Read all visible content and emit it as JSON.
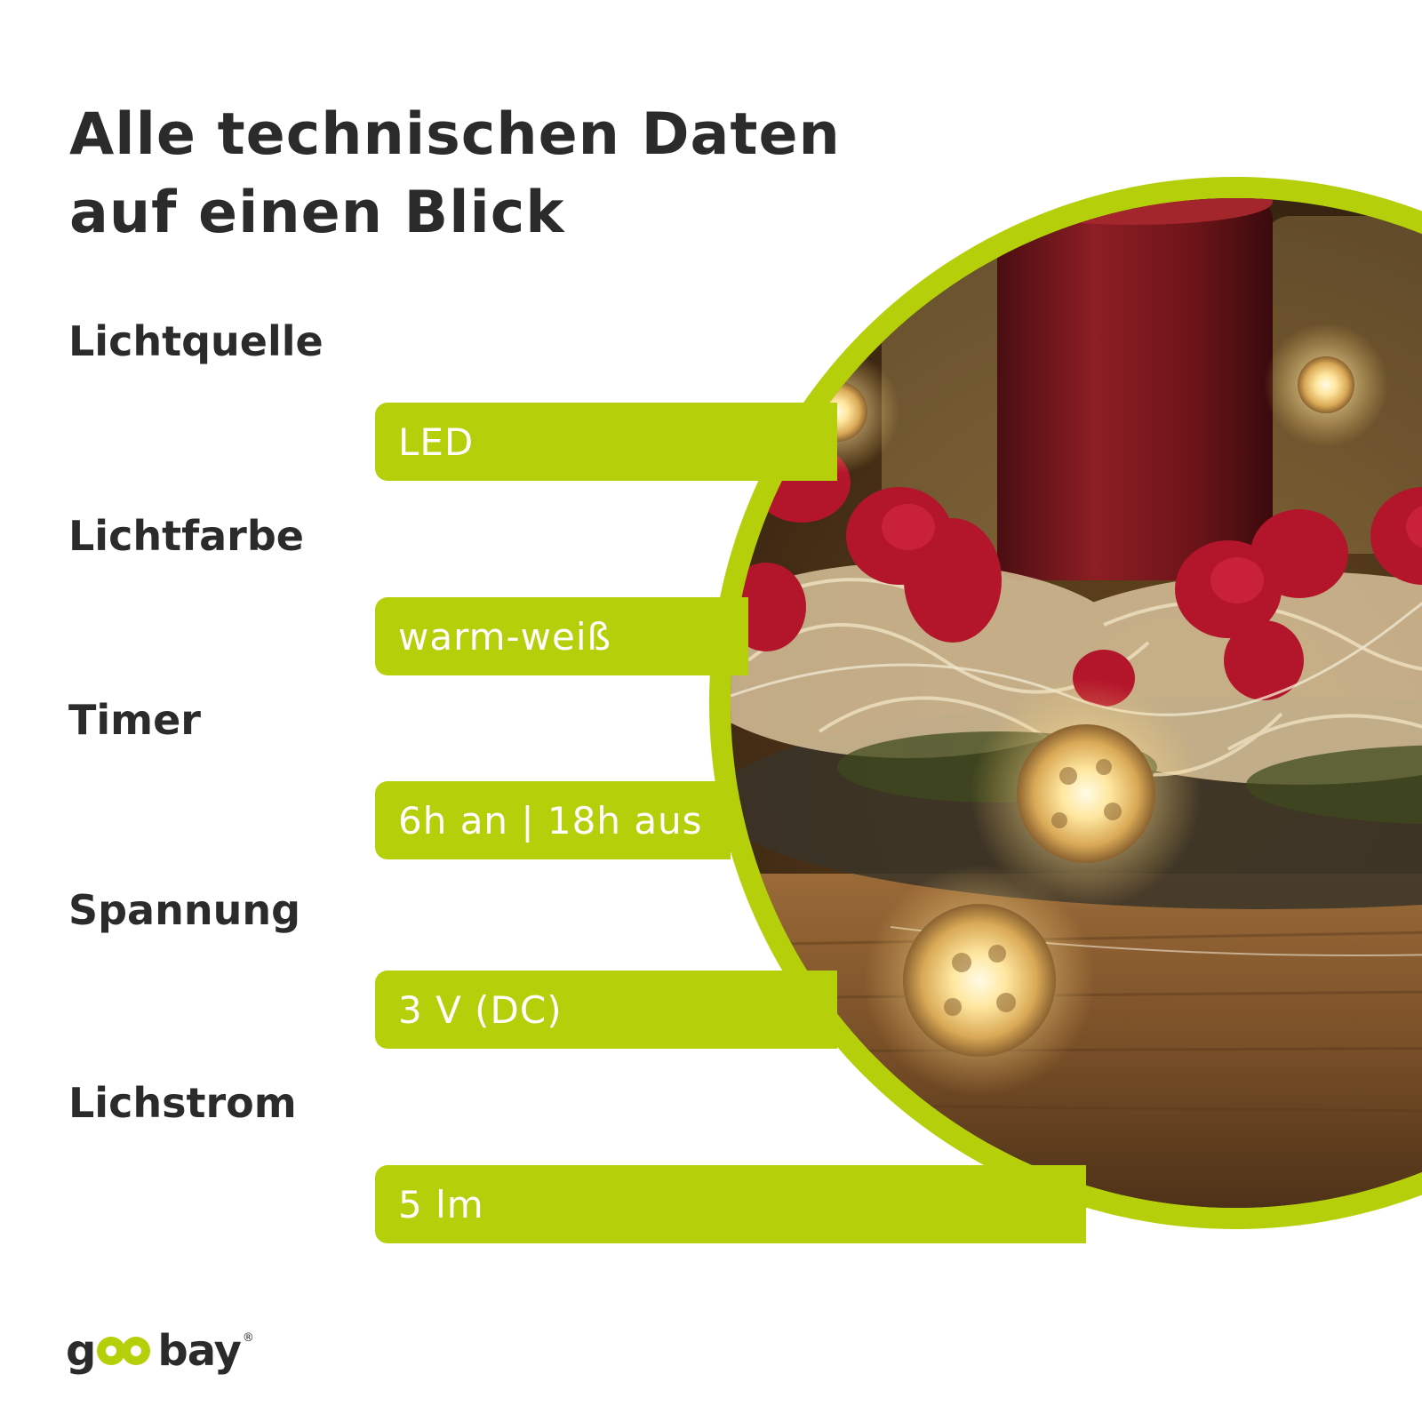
{
  "heading": {
    "line1": "Alle technischen Daten",
    "line2": "auf einen Blick"
  },
  "specs": [
    {
      "label": "Lichtquelle",
      "value": "LED"
    },
    {
      "label": "Lichtfarbe",
      "value": "warm-weiß"
    },
    {
      "label": "Timer",
      "value": "6h an | 18h aus"
    },
    {
      "label": "Spannung",
      "value": "3 V (DC)"
    },
    {
      "label": "Lichstrom",
      "value": "5 lm"
    }
  ],
  "logo": {
    "prefix": "g",
    "suffix": "bay",
    "mark": "®"
  },
  "colors": {
    "accent": "#b6cf0b",
    "text": "#2b2b2b",
    "value_text": "#ffffff",
    "background": "#ffffff"
  },
  "photo": {
    "icon": "fairy-light-candle-photo"
  }
}
